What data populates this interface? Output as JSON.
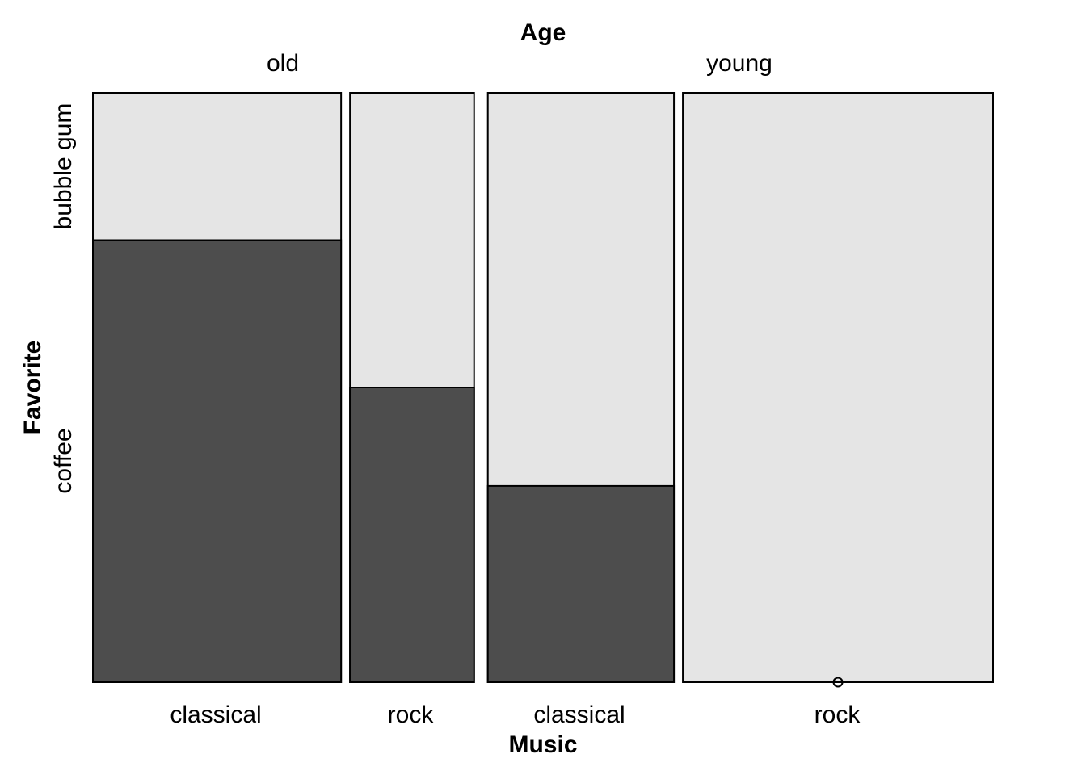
{
  "chart_data": {
    "type": "mosaic",
    "title": "",
    "top_variable": "Age",
    "x_variable": "Music",
    "y_variable": "Favorite",
    "age_groups": [
      "old",
      "young"
    ],
    "music_categories": [
      "classical",
      "rock"
    ],
    "favorite_levels": [
      "bubble gum",
      "coffee"
    ],
    "cells": [
      {
        "age": "old",
        "music": "classical",
        "width_share": 0.28,
        "coffee": 0.75,
        "bubble_gum": 0.25
      },
      {
        "age": "old",
        "music": "rock",
        "width_share": 0.14,
        "coffee": 0.5,
        "bubble_gum": 0.5
      },
      {
        "age": "young",
        "music": "classical",
        "width_share": 0.21,
        "coffee": 0.333,
        "bubble_gum": 0.667
      },
      {
        "age": "young",
        "music": "rock",
        "width_share": 0.35,
        "coffee": 0.0,
        "bubble_gum": 1.0
      }
    ],
    "colors": {
      "coffee": "#4d4d4d",
      "bubble_gum": "#e5e5e5",
      "border": "#000000"
    }
  }
}
